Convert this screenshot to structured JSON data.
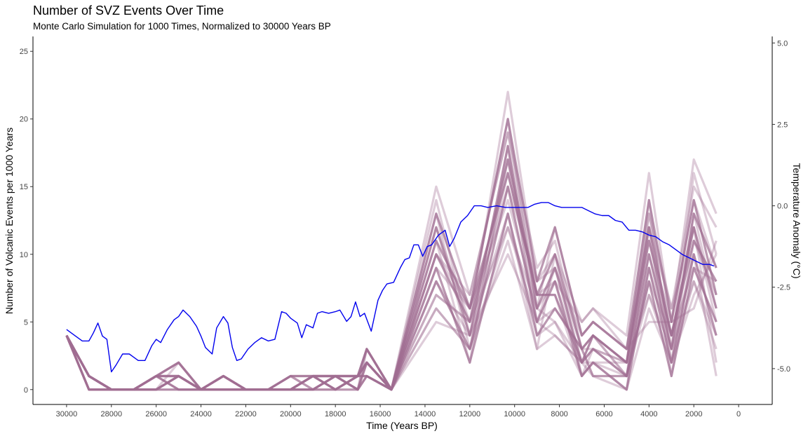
{
  "chart_data": {
    "type": "line",
    "title": "Number of SVZ Events Over Time",
    "subtitle": "Monte Carlo Simulation for 1000 Times, Normalized to 30000 Years BP",
    "xlabel": "Time (Years BP)",
    "ylabel": "Number of Volcanic Events per 1000 Years",
    "y2label": "Temperature Anomaly (°C)",
    "x_reversed": true,
    "xlim": [
      31500,
      -1500
    ],
    "ylim": [
      -1.1,
      26.1
    ],
    "y2lim": [
      -6.1,
      5.2
    ],
    "x_ticks": [
      30000,
      28000,
      26000,
      24000,
      22000,
      20000,
      18000,
      16000,
      14000,
      12000,
      10000,
      8000,
      6000,
      4000,
      2000,
      0
    ],
    "x_tick_labels": [
      "30000",
      "28000",
      "26000",
      "24000",
      "22000",
      "20000",
      "18000",
      "16000",
      "14000",
      "12000",
      "10000",
      "8000",
      "6000",
      "4000",
      "2000",
      "0"
    ],
    "y_ticks": [
      0,
      5,
      10,
      15,
      20,
      25
    ],
    "y_tick_labels": [
      "0",
      "5",
      "10",
      "15",
      "20",
      "25"
    ],
    "y2_ticks": [
      5.0,
      2.5,
      0.0,
      -2.5,
      -5.0
    ],
    "y2_tick_labels": [
      "5.0",
      "2.5",
      "0.0",
      "-2.5",
      "-5.0"
    ],
    "grid": false,
    "event_series": {
      "name": "Monte Carlo event counts",
      "color": "#a06d92",
      "note_count": 1000,
      "x": [
        30000,
        29000,
        28000,
        27000,
        26000,
        25000,
        24000,
        23000,
        22000,
        21000,
        20000,
        19000,
        18000,
        17000,
        16600,
        15500,
        13500,
        12000,
        10300,
        9000,
        8200,
        7000,
        6500,
        5000,
        4000,
        3000,
        2000,
        1000
      ],
      "lines": [
        [
          4,
          1,
          0,
          0,
          1,
          2,
          0,
          1,
          0,
          0,
          0,
          1,
          1,
          1,
          3,
          0,
          13,
          6,
          20,
          8,
          12,
          4,
          5,
          3,
          14,
          5,
          14,
          7
        ],
        [
          4,
          1,
          0,
          0,
          0,
          1,
          0,
          0,
          0,
          0,
          0,
          1,
          0,
          1,
          2,
          0,
          10,
          5,
          17,
          7,
          10,
          3,
          4,
          2,
          12,
          4,
          12,
          6
        ],
        [
          4,
          0,
          0,
          0,
          1,
          1,
          0,
          1,
          0,
          0,
          0,
          0,
          1,
          0,
          2,
          0,
          12,
          4,
          18,
          6,
          9,
          2,
          3,
          1,
          10,
          3,
          13,
          9
        ],
        [
          4,
          1,
          0,
          0,
          1,
          0,
          0,
          0,
          0,
          0,
          1,
          1,
          0,
          1,
          1,
          0,
          8,
          3,
          15,
          5,
          8,
          1,
          2,
          0,
          9,
          2,
          10,
          4
        ],
        [
          4,
          0,
          0,
          0,
          0,
          1,
          0,
          1,
          0,
          0,
          0,
          0,
          1,
          1,
          3,
          0,
          11,
          6,
          16,
          7,
          7,
          2,
          4,
          2,
          11,
          4,
          11,
          8
        ],
        [
          4,
          1,
          0,
          0,
          0,
          0,
          0,
          0,
          0,
          0,
          0,
          1,
          1,
          0,
          1,
          0,
          9,
          2,
          13,
          4,
          6,
          3,
          1,
          1,
          8,
          1,
          9,
          5
        ],
        [
          4,
          1,
          0,
          0,
          1,
          2,
          0,
          0,
          0,
          0,
          1,
          0,
          0,
          1,
          2,
          0,
          7,
          5,
          12,
          6,
          5,
          1,
          3,
          2,
          7,
          3,
          8,
          3
        ],
        [
          4,
          0,
          0,
          0,
          1,
          1,
          0,
          1,
          0,
          0,
          0,
          1,
          0,
          0,
          1,
          0,
          6,
          3,
          11,
          3,
          4,
          2,
          2,
          0,
          6,
          2,
          7,
          10
        ],
        [
          4,
          1,
          0,
          0,
          0,
          1,
          0,
          0,
          0,
          0,
          0,
          0,
          1,
          1,
          2,
          0,
          5,
          4,
          10,
          5,
          9,
          4,
          5,
          3,
          5,
          5,
          6,
          11
        ],
        [
          4,
          1,
          0,
          0,
          1,
          0,
          0,
          1,
          0,
          0,
          1,
          1,
          1,
          0,
          3,
          0,
          15,
          7,
          19,
          9,
          11,
          3,
          4,
          1,
          13,
          6,
          15,
          12
        ],
        [
          4,
          0,
          0,
          0,
          0,
          2,
          0,
          0,
          0,
          0,
          0,
          0,
          0,
          1,
          1,
          0,
          12,
          5,
          22,
          8,
          10,
          5,
          6,
          4,
          16,
          5,
          17,
          13
        ],
        [
          4,
          1,
          0,
          0,
          1,
          1,
          0,
          1,
          0,
          0,
          0,
          1,
          0,
          0,
          2,
          0,
          10,
          6,
          14,
          6,
          8,
          2,
          3,
          2,
          10,
          4,
          12,
          2
        ],
        [
          4,
          1,
          0,
          0,
          0,
          1,
          0,
          0,
          0,
          0,
          1,
          0,
          1,
          1,
          2,
          0,
          8,
          4,
          16,
          7,
          7,
          1,
          2,
          1,
          9,
          3,
          10,
          1
        ],
        [
          4,
          0,
          0,
          0,
          1,
          0,
          0,
          1,
          0,
          0,
          0,
          1,
          1,
          1,
          1,
          0,
          13,
          3,
          17,
          5,
          6,
          3,
          4,
          2,
          14,
          2,
          13,
          6
        ],
        [
          4,
          1,
          0,
          0,
          1,
          2,
          0,
          0,
          0,
          0,
          0,
          0,
          0,
          0,
          3,
          0,
          11,
          2,
          18,
          4,
          5,
          2,
          1,
          0,
          12,
          1,
          11,
          7
        ],
        [
          4,
          1,
          0,
          0,
          0,
          1,
          0,
          1,
          0,
          0,
          1,
          1,
          0,
          1,
          2,
          0,
          9,
          6,
          20,
          6,
          12,
          4,
          5,
          3,
          11,
          5,
          14,
          9
        ],
        [
          4,
          0,
          0,
          0,
          1,
          1,
          0,
          0,
          0,
          0,
          0,
          0,
          1,
          0,
          1,
          0,
          7,
          5,
          15,
          8,
          9,
          3,
          3,
          1,
          8,
          4,
          9,
          8
        ],
        [
          4,
          1,
          0,
          0,
          0,
          0,
          0,
          1,
          0,
          0,
          0,
          1,
          1,
          1,
          2,
          0,
          14,
          4,
          13,
          3,
          10,
          1,
          2,
          2,
          13,
          3,
          16,
          10
        ],
        [
          4,
          1,
          0,
          0,
          1,
          1,
          0,
          0,
          0,
          0,
          1,
          0,
          0,
          1,
          3,
          0,
          6,
          3,
          12,
          5,
          4,
          2,
          4,
          1,
          7,
          2,
          8,
          4
        ],
        [
          4,
          0,
          0,
          0,
          1,
          2,
          0,
          1,
          0,
          0,
          0,
          1,
          1,
          0,
          2,
          0,
          10,
          7,
          19,
          7,
          8,
          5,
          6,
          3,
          12,
          6,
          12,
          5
        ]
      ]
    },
    "temperature_series": {
      "name": "Temperature anomaly",
      "color": "#0000ee",
      "x": [
        30000,
        29600,
        29300,
        29000,
        28800,
        28600,
        28400,
        28200,
        28100,
        28000,
        27800,
        27500,
        27200,
        26800,
        26500,
        26200,
        26000,
        25800,
        25500,
        25200,
        25000,
        24800,
        24500,
        24200,
        24000,
        23800,
        23500,
        23300,
        23000,
        22800,
        22600,
        22400,
        22200,
        21900,
        21600,
        21300,
        21000,
        20700,
        20400,
        20200,
        20000,
        19700,
        19500,
        19300,
        19000,
        18800,
        18600,
        18300,
        18000,
        17800,
        17500,
        17300,
        17100,
        16900,
        16700,
        16400,
        16100,
        15900,
        15700,
        15400,
        15100,
        14900,
        14700,
        14500,
        14300,
        14100,
        13900,
        13700,
        13400,
        13100,
        12900,
        12700,
        12400,
        12100,
        11800,
        11500,
        11200,
        10800,
        10400,
        10000,
        9700,
        9400,
        9100,
        8800,
        8500,
        8200,
        7900,
        7600,
        7300,
        7000,
        6700,
        6400,
        6100,
        5800,
        5500,
        5200,
        4900,
        4600,
        4300,
        4000,
        3700,
        3400,
        3100,
        2800,
        2500,
        2200,
        1900,
        1600,
        1300,
        1100
      ],
      "y": [
        -3.8,
        -4.0,
        -4.15,
        -4.15,
        -3.9,
        -3.6,
        -4.0,
        -4.1,
        -4.6,
        -5.1,
        -4.9,
        -4.55,
        -4.55,
        -4.75,
        -4.75,
        -4.3,
        -4.1,
        -4.2,
        -3.8,
        -3.5,
        -3.4,
        -3.2,
        -3.4,
        -3.7,
        -4.0,
        -4.35,
        -4.55,
        -3.75,
        -3.4,
        -3.6,
        -4.35,
        -4.75,
        -4.7,
        -4.4,
        -4.2,
        -4.05,
        -4.15,
        -4.1,
        -3.25,
        -3.3,
        -3.45,
        -3.6,
        -4.05,
        -3.65,
        -3.75,
        -3.3,
        -3.25,
        -3.3,
        -3.25,
        -3.2,
        -3.55,
        -3.4,
        -2.95,
        -3.4,
        -3.3,
        -3.85,
        -2.9,
        -2.6,
        -2.4,
        -2.35,
        -1.9,
        -1.65,
        -1.6,
        -1.2,
        -1.2,
        -1.55,
        -1.25,
        -1.2,
        -0.9,
        -0.75,
        -1.25,
        -1.0,
        -0.5,
        -0.3,
        0.0,
        0.0,
        -0.05,
        0.0,
        -0.05,
        -0.05,
        -0.05,
        -0.05,
        0.05,
        0.1,
        0.1,
        0.0,
        -0.05,
        -0.05,
        -0.05,
        -0.05,
        -0.15,
        -0.25,
        -0.3,
        -0.3,
        -0.45,
        -0.5,
        -0.75,
        -0.75,
        -0.8,
        -0.9,
        -0.95,
        -1.1,
        -1.2,
        -1.35,
        -1.5,
        -1.6,
        -1.7,
        -1.8,
        -1.8,
        -1.85
      ]
    }
  }
}
